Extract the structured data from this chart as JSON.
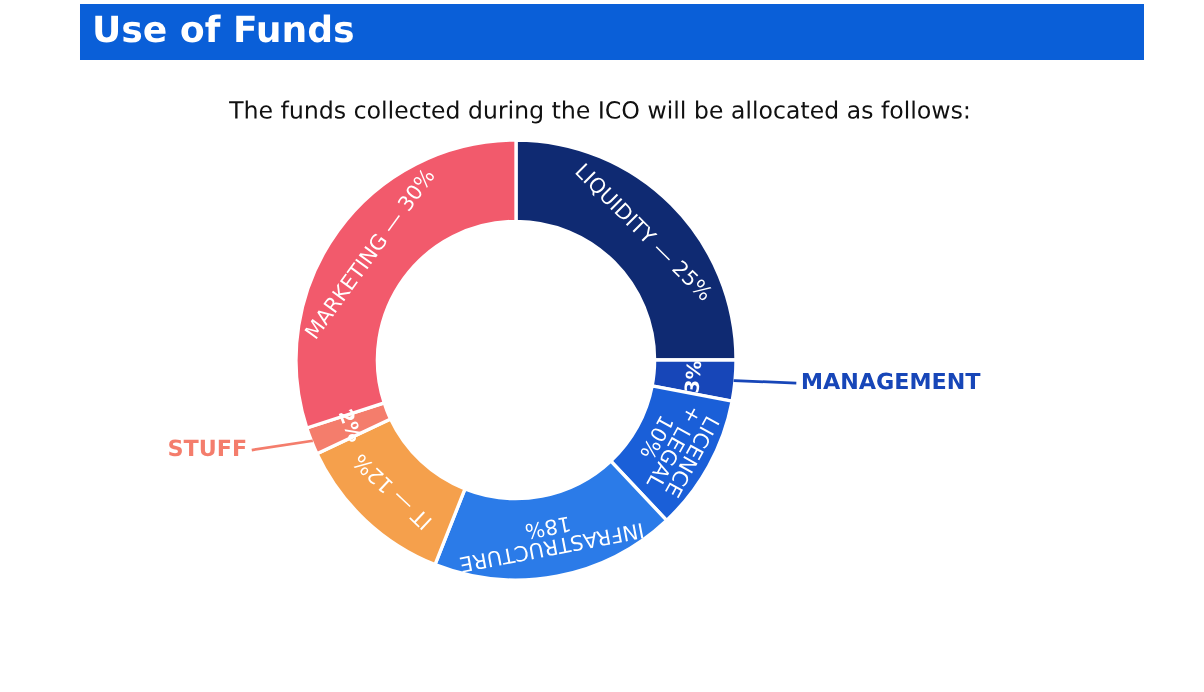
{
  "chart_data": {
    "type": "donut",
    "title": "Use of Funds",
    "subtitle": "The funds collected during the ICO will be allocated as follows:",
    "categories": [
      "LIQUIDITY",
      "MANAGEMENT",
      "LICENCE + LEGAL",
      "INFRASTRUCTURE",
      "IT",
      "STUFF",
      "MARKETING"
    ],
    "values": [
      25,
      3,
      10,
      18,
      12,
      2,
      30
    ],
    "value_labels": [
      "— 25%",
      "3%",
      "10%",
      "18%",
      "— 12%",
      "2%",
      "— 30%"
    ],
    "colors": [
      "#0f2a72",
      "#1746b8",
      "#1a5fd8",
      "#2b7be8",
      "#f5a04c",
      "#f47d6c",
      "#f25a6c"
    ]
  }
}
